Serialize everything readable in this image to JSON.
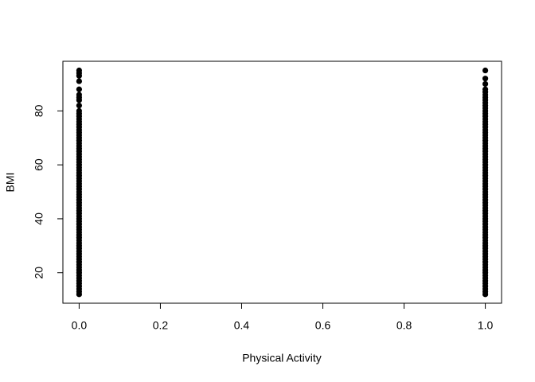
{
  "chart_data": {
    "type": "scatter",
    "xlabel": "Physical Activity",
    "ylabel": "BMI",
    "xlim": [
      -0.04,
      1.04
    ],
    "ylim": [
      8.7,
      98.4
    ],
    "xticks": [
      {
        "value": 0,
        "label": "0.0"
      },
      {
        "value": 0.2,
        "label": "0.2"
      },
      {
        "value": 0.4,
        "label": "0.4"
      },
      {
        "value": 0.6,
        "label": "0.6"
      },
      {
        "value": 0.8,
        "label": "0.8"
      },
      {
        "value": 1,
        "label": "1.0"
      }
    ],
    "yticks": [
      20,
      40,
      60,
      80
    ],
    "color": "#000000",
    "x": [
      0,
      0,
      0,
      0,
      0,
      0,
      0,
      0,
      0,
      0,
      0,
      0,
      0,
      0,
      0,
      0,
      0,
      0,
      0,
      0,
      0,
      0,
      0,
      0,
      0,
      0,
      0,
      0,
      0,
      0,
      0,
      0,
      0,
      0,
      0,
      0,
      0,
      0,
      0,
      0,
      0,
      0,
      0,
      0,
      0,
      0,
      0,
      0,
      0,
      0,
      0,
      0,
      0,
      0,
      0,
      0,
      0,
      0,
      0,
      0,
      0,
      0,
      0,
      0,
      0,
      0,
      0,
      0,
      0,
      0,
      0,
      0,
      0,
      0,
      0,
      0,
      0,
      0,
      1,
      1,
      1,
      1,
      1,
      1,
      1,
      1,
      1,
      1,
      1,
      1,
      1,
      1,
      1,
      1,
      1,
      1,
      1,
      1,
      1,
      1,
      1,
      1,
      1,
      1,
      1,
      1,
      1,
      1,
      1,
      1,
      1,
      1,
      1,
      1,
      1,
      1,
      1,
      1,
      1,
      1,
      1,
      1,
      1,
      1,
      1,
      1,
      1,
      1,
      1,
      1,
      1,
      1,
      1,
      1,
      1,
      1,
      1,
      1,
      1,
      1,
      1,
      1,
      1,
      1,
      1,
      1,
      1,
      1,
      1,
      1,
      1,
      1,
      1,
      1,
      1,
      1,
      1,
      1
    ],
    "y": [
      12,
      13,
      14,
      15,
      16,
      17,
      18,
      19,
      20,
      21,
      22,
      23,
      24,
      25,
      26,
      27,
      28,
      29,
      30,
      31,
      32,
      33,
      34,
      35,
      36,
      37,
      38,
      39,
      40,
      41,
      42,
      43,
      44,
      45,
      46,
      47,
      48,
      49,
      50,
      51,
      52,
      53,
      54,
      55,
      56,
      57,
      58,
      59,
      60,
      61,
      62,
      63,
      64,
      65,
      66,
      67,
      68,
      69,
      70,
      71,
      72,
      73,
      74,
      75,
      76,
      77,
      78,
      79,
      80,
      82,
      84,
      85,
      86,
      88,
      91,
      93,
      94,
      95,
      12,
      13,
      14,
      15,
      16,
      17,
      18,
      19,
      20,
      21,
      22,
      23,
      24,
      25,
      26,
      27,
      28,
      29,
      30,
      31,
      32,
      33,
      34,
      35,
      36,
      37,
      38,
      39,
      40,
      41,
      42,
      43,
      44,
      45,
      46,
      47,
      48,
      49,
      50,
      51,
      52,
      53,
      54,
      55,
      56,
      57,
      58,
      59,
      60,
      61,
      62,
      63,
      64,
      65,
      66,
      67,
      68,
      69,
      70,
      71,
      72,
      73,
      74,
      75,
      76,
      77,
      78,
      79,
      80,
      81,
      82,
      83,
      84,
      85,
      86,
      87,
      88,
      90,
      92,
      95
    ]
  }
}
